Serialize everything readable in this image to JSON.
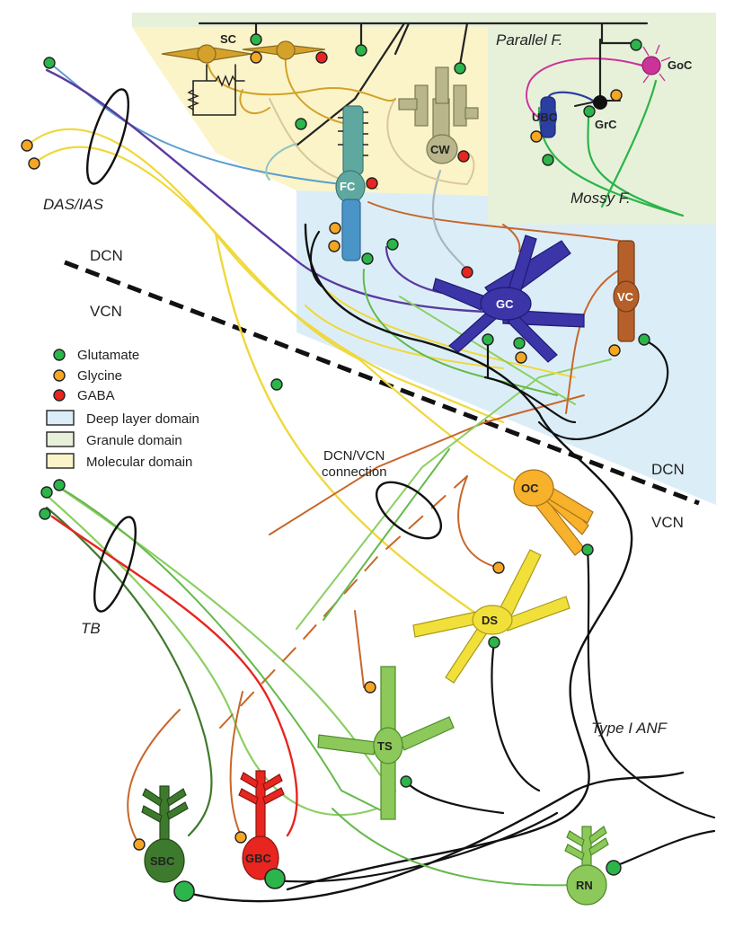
{
  "colors": {
    "glutamate": "#2bb54a",
    "glycine": "#f5a623",
    "gaba": "#e8251f",
    "deep_layer": "#dbeef8",
    "granule": "#e7f1da",
    "molecular": "#fbf4c9"
  },
  "regions": {
    "dcn_upper": "DCN",
    "vcn_upper": "VCN",
    "dcn_lower": "DCN",
    "vcn_lower": "VCN"
  },
  "fibers": {
    "das_ias": "DAS/IAS",
    "tb": "TB",
    "parallel": "Parallel F.",
    "mossy": "Mossy F.",
    "type1_anf": "Type I ANF",
    "dcn_vcn_connection_line1": "DCN/VCN",
    "dcn_vcn_connection_line2": "connection"
  },
  "legend": {
    "items": [
      {
        "label": "Glutamate",
        "color": "#2bb54a"
      },
      {
        "label": "Glycine",
        "color": "#f5a623"
      },
      {
        "label": "GABA",
        "color": "#e8251f"
      }
    ],
    "domains": [
      {
        "label": "Deep layer domain",
        "color": "#dbeef8"
      },
      {
        "label": "Granule domain",
        "color": "#e7f1da"
      },
      {
        "label": "Molecular domain",
        "color": "#fbf4c9"
      }
    ]
  },
  "cells": {
    "sc": "SC",
    "fc": "FC",
    "cw": "CW",
    "ubc": "UBC",
    "grc": "GrC",
    "goc": "GoC",
    "gc": "GC",
    "vc": "VC",
    "oc": "OC",
    "ds": "DS",
    "ts": "TS",
    "sbc": "SBC",
    "gbc": "GBC",
    "rn": "RN"
  }
}
